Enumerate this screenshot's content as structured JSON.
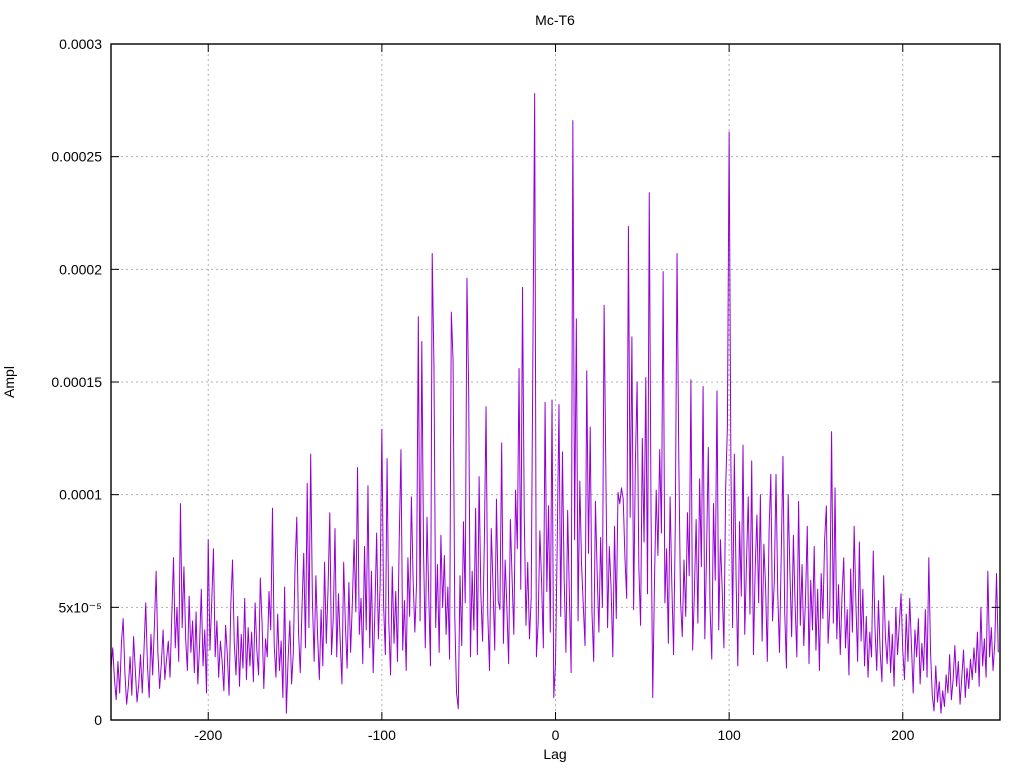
{
  "page": {
    "background": "#ffffff"
  },
  "chart_data": {
    "type": "line",
    "title": "Mc-T6",
    "xlabel": "Lag",
    "ylabel": "Ampl",
    "xlim": [
      -256,
      256
    ],
    "ylim": [
      0,
      0.0003
    ],
    "grid": true,
    "legend": "none",
    "line_color": "#9400d3",
    "grid_color": "#b0b0b0",
    "axis_color": "#000000",
    "xticks": {
      "values": [
        -200,
        -100,
        0,
        100,
        200
      ],
      "labels": [
        "-200",
        "-100",
        "0",
        "100",
        "200"
      ]
    },
    "yticks": {
      "values": [
        0,
        5e-05,
        0.0001,
        0.00015,
        0.0002,
        0.00025,
        0.0003
      ],
      "labels": [
        "0",
        "5x10⁻⁵",
        "0.0001",
        "0.00015",
        "0.0002",
        "0.00025",
        "0.0003"
      ]
    },
    "series": [
      {
        "x_start": -256,
        "x_step": 1,
        "value_unit": 1e-05,
        "values_e5": [
          2.3,
          3.2,
          1.8,
          0.9,
          2.6,
          1.2,
          3.4,
          4.5,
          2.1,
          0.7,
          1.5,
          2.8,
          1.1,
          3.7,
          2.2,
          0.8,
          1.6,
          2.9,
          1.2,
          3.1,
          5.2,
          2.4,
          1.0,
          3.8,
          2.0,
          4.2,
          6.6,
          3.0,
          1.4,
          2.5,
          4.0,
          1.8,
          2.7,
          3.5,
          1.9,
          4.6,
          7.2,
          3.2,
          5.0,
          2.6,
          9.6,
          4.1,
          6.8,
          3.6,
          2.2,
          5.5,
          3.0,
          4.4,
          2.1,
          4.8,
          1.6,
          3.3,
          5.8,
          2.4,
          4.0,
          1.2,
          8.0,
          3.1,
          5.2,
          7.6,
          2.8,
          4.4,
          1.9,
          3.5,
          2.6,
          1.3,
          4.2,
          2.9,
          1.1,
          5.1,
          7.1,
          3.4,
          2.0,
          4.6,
          1.5,
          3.8,
          2.3,
          5.4,
          1.8,
          4.1,
          2.4,
          3.9,
          1.7,
          5.2,
          3.1,
          2.0,
          6.3,
          4.3,
          1.4,
          3.6,
          2.8,
          5.7,
          4.0,
          9.4,
          3.3,
          1.9,
          4.7,
          2.2,
          3.5,
          1.0,
          5.9,
          0.3,
          2.7,
          4.4,
          1.6,
          3.0,
          6.8,
          9.0,
          3.9,
          2.1,
          5.0,
          7.4,
          3.2,
          10.5,
          4.1,
          11.8,
          5.3,
          2.6,
          6.4,
          3.7,
          1.8,
          4.9,
          2.4,
          7.0,
          3.4,
          5.8,
          9.2,
          2.9,
          4.5,
          8.5,
          2.8,
          5.6,
          3.5,
          1.6,
          7.0,
          4.2,
          2.3,
          6.1,
          3.0,
          5.2,
          8.0,
          4.8,
          11.2,
          3.8,
          5.4,
          2.5,
          7.7,
          4.0,
          10.4,
          3.2,
          6.6,
          2.1,
          4.9,
          8.3,
          3.6,
          6.0,
          12.9,
          5.1,
          2.9,
          11.6,
          4.3,
          2.0,
          6.8,
          3.4,
          5.7,
          2.6,
          8.0,
          12.0,
          3.1,
          5.3,
          2.2,
          7.2,
          4.6,
          9.9,
          6.2,
          3.9,
          6.1,
          17.9,
          4.4,
          16.8,
          7.5,
          3.2,
          9.0,
          5.5,
          2.4,
          20.7,
          15.7,
          4.1,
          6.9,
          3.0,
          8.2,
          5.0,
          7.3,
          3.8,
          5.9,
          2.7,
          18.1,
          16.0,
          4.6,
          1.2,
          0.5,
          6.4,
          3.3,
          8.8,
          5.2,
          19.6,
          14.6,
          2.8,
          6.6,
          4.0,
          9.4,
          2.9,
          10.8,
          5.6,
          3.5,
          7.8,
          13.9,
          4.7,
          2.2,
          8.5,
          6.0,
          3.1,
          9.8,
          5.3,
          4.9,
          12.3,
          3.4,
          7.1,
          5.0,
          2.5,
          8.9,
          6.3,
          3.8,
          10.2,
          7.6,
          15.6,
          5.8,
          19.2,
          9.1,
          4.2,
          7.0,
          3.6,
          5.4,
          16.5,
          27.8,
          2.8,
          4.3,
          8.4,
          6.1,
          3.2,
          14.1,
          5.7,
          9.5,
          3.9,
          14.2,
          1.0,
          2.5,
          7.9,
          14.0,
          4.6,
          11.9,
          6.2,
          3.0,
          9.3,
          5.5,
          2.1,
          26.6,
          8.0,
          17.8,
          4.4,
          10.6,
          6.9,
          5.1,
          3.3,
          15.5,
          7.4,
          13.0,
          4.8,
          2.6,
          9.7,
          6.5,
          3.9,
          8.1,
          5.0,
          18.4,
          11.0,
          4.1,
          7.7,
          5.9,
          2.8,
          8.6,
          4.5,
          10.1,
          9.6,
          10.3,
          9.8,
          7.2,
          5.4,
          21.9,
          9.0,
          17.0,
          4.9,
          11.4,
          15.0,
          6.8,
          4.2,
          12.5,
          7.9,
          15.2,
          5.6,
          23.4,
          9.4,
          1.0,
          6.1,
          10.2,
          7.3,
          12.0,
          8.3,
          19.9,
          5.2,
          7.6,
          3.4,
          9.9,
          6.0,
          2.9,
          8.7,
          20.7,
          11.6,
          5.3,
          3.7,
          7.1,
          4.6,
          9.2,
          6.4,
          15.1,
          3.1,
          5.7,
          8.9,
          4.3,
          10.7,
          6.8,
          14.8,
          3.6,
          7.4,
          12.1,
          5.0,
          2.7,
          9.6,
          6.2,
          14.6,
          4.0,
          8.0,
          5.8,
          3.2,
          10.3,
          13.0,
          26.1,
          11.5,
          4.1,
          11.8,
          6.3,
          2.4,
          8.8,
          5.5,
          12.2,
          3.8,
          7.0,
          9.9,
          4.7,
          11.5,
          2.9,
          6.7,
          9.1,
          5.2,
          10.0,
          3.5,
          7.8,
          5.9,
          2.6,
          8.4,
          10.9,
          4.4,
          6.1,
          10.9,
          5.6,
          3.0,
          7.3,
          11.7,
          4.8,
          2.3,
          10.0,
          6.6,
          3.7,
          8.2,
          5.1,
          2.8,
          9.7,
          4.2,
          6.9,
          3.3,
          5.4,
          8.6,
          2.5,
          6.2,
          4.0,
          7.7,
          3.1,
          5.8,
          2.2,
          6.5,
          4.5,
          8.0,
          9.5,
          3.4,
          5.0,
          12.8,
          4.3,
          10.3,
          3.6,
          6.0,
          2.9,
          5.5,
          7.2,
          3.2,
          4.9,
          2.0,
          6.7,
          3.9,
          8.6,
          5.2,
          2.6,
          7.9,
          3.5,
          5.8,
          2.4,
          4.6,
          1.9,
          3.9,
          2.8,
          7.5,
          4.1,
          2.2,
          5.3,
          3.0,
          1.7,
          6.4,
          3.7,
          2.5,
          4.4,
          2.1,
          3.8,
          1.5,
          5.0,
          2.9,
          4.2,
          5.6,
          3.1,
          1.8,
          4.7,
          2.6,
          5.4,
          3.3,
          1.2,
          4.0,
          2.8,
          4.5,
          1.6,
          3.4,
          2.2,
          4.9,
          1.9,
          7.2,
          3.0,
          1.1,
          0.4,
          2.4,
          0.8,
          1.7,
          0.3,
          1.3,
          0.6,
          2.0,
          1.2,
          2.9,
          0.9,
          1.8,
          3.3,
          1.5,
          2.6,
          0.7,
          1.9,
          3.1,
          1.0,
          2.3,
          1.4,
          2.7,
          1.8,
          3.2,
          2.1,
          3.9,
          1.5,
          5.0,
          2.4,
          3.6,
          1.9,
          6.6,
          2.8,
          4.1,
          2.2,
          3.4,
          6.5,
          3.0
        ]
      }
    ]
  }
}
